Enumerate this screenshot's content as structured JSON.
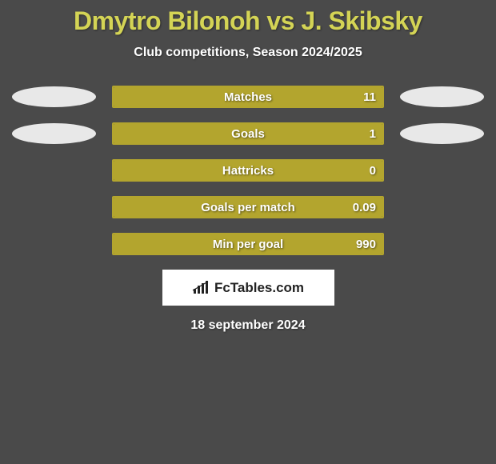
{
  "title": {
    "player1": "Dmytro Bilonoh",
    "vs": "vs",
    "player2": "J. Skibsky",
    "color": "#d4d455",
    "fontsize": 32
  },
  "subtitle": "Club competitions, Season 2024/2025",
  "stats": {
    "bar_color": "#b3a52e",
    "border_color": "#b3a52e",
    "text_color": "#ffffff",
    "rows": [
      {
        "label": "Matches",
        "value": "11",
        "fill_pct": 100,
        "left_oval": true,
        "right_oval": true
      },
      {
        "label": "Goals",
        "value": "1",
        "fill_pct": 100,
        "left_oval": true,
        "right_oval": true
      },
      {
        "label": "Hattricks",
        "value": "0",
        "fill_pct": 100,
        "left_oval": false,
        "right_oval": false
      },
      {
        "label": "Goals per match",
        "value": "0.09",
        "fill_pct": 100,
        "left_oval": false,
        "right_oval": false
      },
      {
        "label": "Min per goal",
        "value": "990",
        "fill_pct": 100,
        "left_oval": false,
        "right_oval": false
      }
    ]
  },
  "logo": {
    "brand": "FcTables.com",
    "icon_bar_colors": [
      "#222",
      "#222",
      "#222",
      "#222"
    ]
  },
  "date": "18 september 2024",
  "background_color": "#4a4a4a"
}
